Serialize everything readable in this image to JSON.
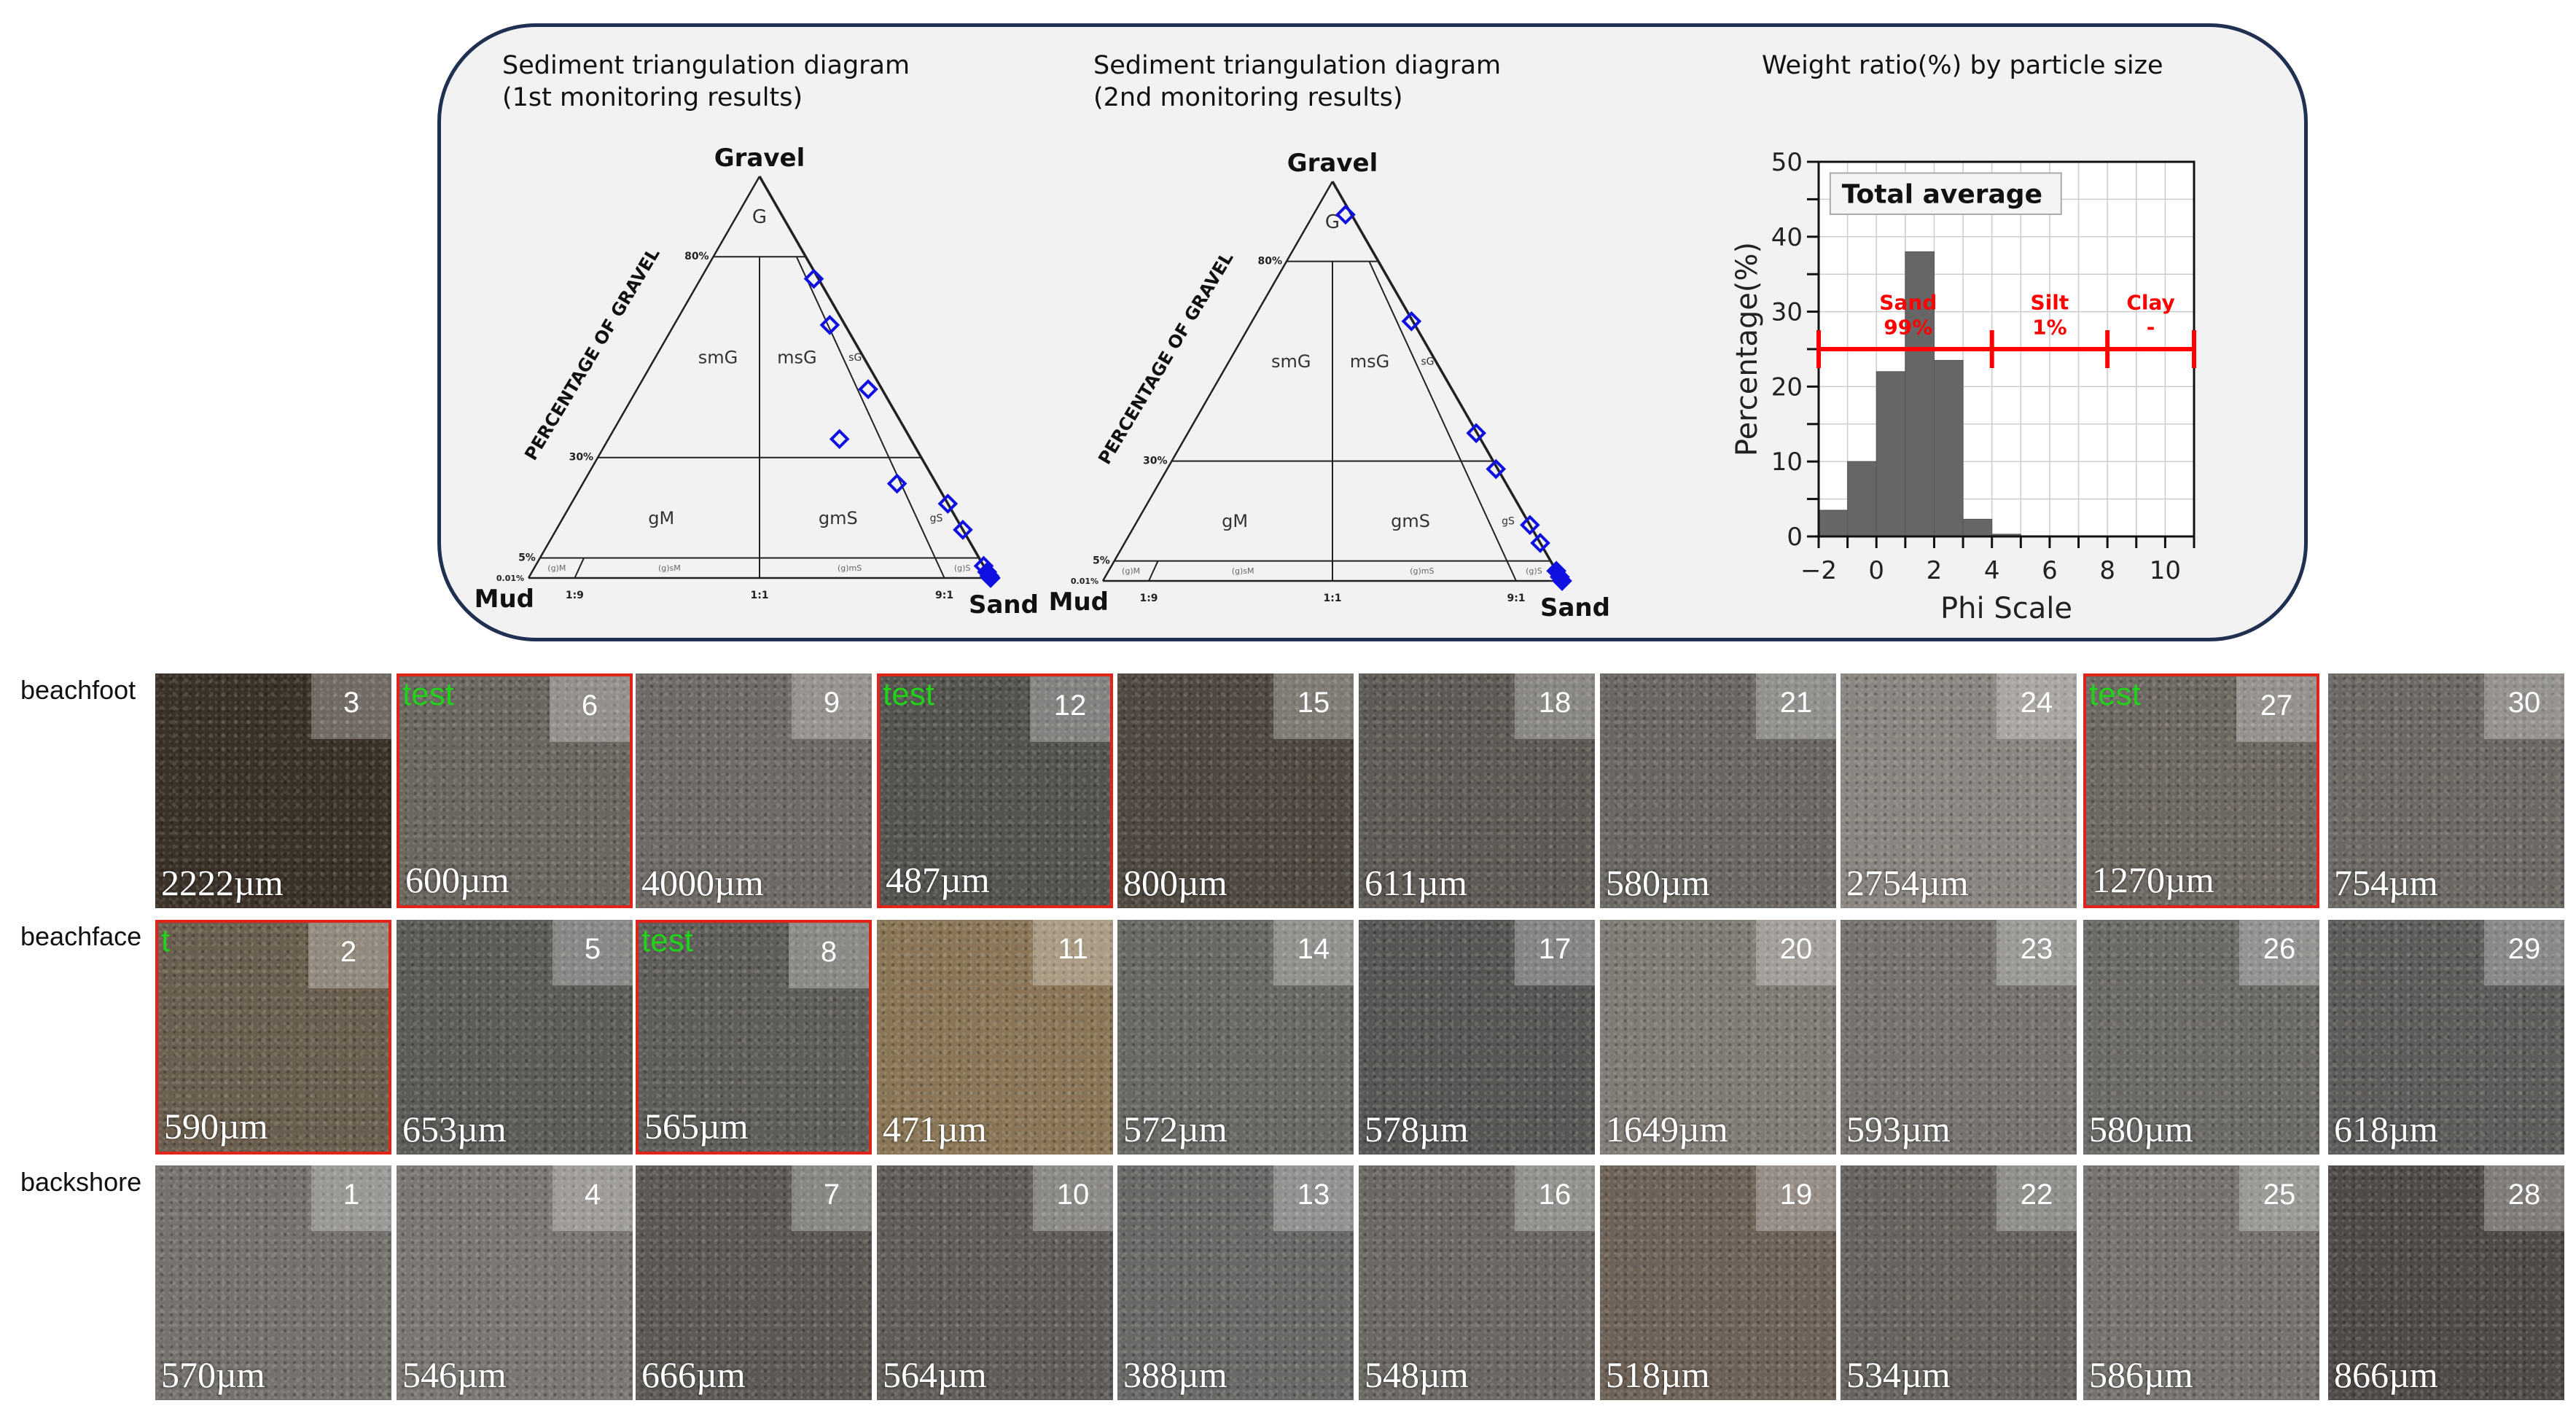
{
  "panel": {
    "tri1_title": [
      "Sediment triangulation diagram",
      "(1st monitoring results)"
    ],
    "tri2_title": [
      "Sediment triangulation diagram",
      "(2nd monitoring results)"
    ],
    "hist_title": "Weight ratio(%) by particle size",
    "border_color": "#1f3050"
  },
  "ternary_labels": {
    "apex": "Gravel",
    "left": "Mud",
    "right": "Sand",
    "axis": "PERCENTAGE OF GRAVEL",
    "levels": [
      "80%",
      "30%",
      "5%",
      "0.01%"
    ],
    "ratios": [
      "1:9",
      "1:1",
      "9:1"
    ],
    "regions": [
      "G",
      "smG",
      "msG",
      "sG",
      "gM",
      "gmS",
      "gS",
      "(g)M",
      "(g)sM",
      "(g)mS",
      "(g)S"
    ]
  },
  "chart_data": [
    {
      "type": "scatter",
      "subtype": "ternary",
      "title": "Sediment triangulation diagram (1st monitoring results)",
      "marker_color": "#1010e0",
      "points": [
        {
          "gravel": 74.5,
          "sand": 24.5,
          "mud": 1
        },
        {
          "gravel": 63,
          "sand": 33.7,
          "mud": 3.3
        },
        {
          "gravel": 47,
          "sand": 50,
          "mud": 3
        },
        {
          "gravel": 34.6,
          "sand": 50,
          "mud": 15.4
        },
        {
          "gravel": 23.5,
          "sand": 68,
          "mud": 8.5
        },
        {
          "gravel": 18.5,
          "sand": 81.5,
          "mud": 0
        },
        {
          "gravel": 12,
          "sand": 88,
          "mud": 0
        },
        {
          "gravel": 3,
          "sand": 97,
          "mud": 0
        },
        {
          "gravel": 1.5,
          "sand": 98.5,
          "mud": 0
        },
        {
          "gravel": 0.5,
          "sand": 99.5,
          "mud": 0
        },
        {
          "gravel": 0,
          "sand": 100,
          "mud": 0
        }
      ]
    },
    {
      "type": "scatter",
      "subtype": "ternary",
      "title": "Sediment triangulation diagram (2nd monitoring results)",
      "marker_color": "#1010e0",
      "points": [
        {
          "gravel": 91.7,
          "sand": 7,
          "mud": 1.3
        },
        {
          "gravel": 65,
          "sand": 34.7,
          "mud": 0.3
        },
        {
          "gravel": 37,
          "sand": 62.8,
          "mud": 0.2
        },
        {
          "gravel": 28,
          "sand": 71.6,
          "mud": 0.4
        },
        {
          "gravel": 14,
          "sand": 86,
          "mud": 0
        },
        {
          "gravel": 9.5,
          "sand": 90.5,
          "mud": 0
        },
        {
          "gravel": 2.5,
          "sand": 97.5,
          "mud": 0
        },
        {
          "gravel": 1,
          "sand": 99,
          "mud": 0
        },
        {
          "gravel": 0,
          "sand": 100,
          "mud": 0
        }
      ]
    },
    {
      "type": "bar",
      "title": "Weight ratio(%) by particle size",
      "legend": "Total average",
      "xlabel": "Phi Scale",
      "ylabel": "Percentage(%)",
      "xlim": [
        -2,
        11
      ],
      "ylim": [
        0,
        50
      ],
      "xticks": [
        "−2",
        "0",
        "2",
        "4",
        "6",
        "8",
        "10"
      ],
      "yticks": [
        "0",
        "10",
        "20",
        "30",
        "40",
        "50"
      ],
      "grid": true,
      "bins": [
        [
          -2,
          -1
        ],
        [
          -1,
          0
        ],
        [
          0,
          1
        ],
        [
          1,
          2
        ],
        [
          2,
          3
        ],
        [
          3,
          4
        ],
        [
          4,
          5
        ],
        [
          5,
          6
        ]
      ],
      "values": [
        3.5,
        10,
        22,
        38,
        23.5,
        2.3,
        0.3,
        0.1
      ],
      "bar_color": "#666666",
      "classes": [
        {
          "name": "Sand",
          "value": "99%",
          "from": -2,
          "to": 4
        },
        {
          "name": "Silt",
          "value": "1%",
          "from": 4,
          "to": 8
        },
        {
          "name": "Clay",
          "value": "-",
          "from": 8,
          "to": 11
        }
      ],
      "class_color": "#ff0000"
    }
  ],
  "rows": [
    {
      "label": "beachfoot",
      "tiles": [
        {
          "n": "3",
          "size": "2222µm",
          "tone": "#3a3128"
        },
        {
          "n": "6",
          "size": "600µm",
          "tone": "#6b6660",
          "flag": true,
          "tag": "test"
        },
        {
          "n": "9",
          "size": "4000µm",
          "tone": "#6e6a66"
        },
        {
          "n": "12",
          "size": "487µm",
          "tone": "#55534f",
          "flag": true,
          "tag": "test"
        },
        {
          "n": "15",
          "size": "800µm",
          "tone": "#4e4840"
        },
        {
          "n": "18",
          "size": "611µm",
          "tone": "#5e5a55"
        },
        {
          "n": "21",
          "size": "580µm",
          "tone": "#6a6763"
        },
        {
          "n": "24",
          "size": "2754µm",
          "tone": "#8a8580"
        },
        {
          "n": "27",
          "size": "1270µm",
          "tone": "#6e6862",
          "flag": true,
          "tag": "test"
        },
        {
          "n": "30",
          "size": "754µm",
          "tone": "#6c6964"
        }
      ]
    },
    {
      "label": "beachface",
      "tiles": [
        {
          "n": "2",
          "size": "590µm",
          "tone": "#6a5e4e",
          "flag": true,
          "tag": "t"
        },
        {
          "n": "5",
          "size": "653µm",
          "tone": "#5d5b58"
        },
        {
          "n": "8",
          "size": "565µm",
          "tone": "#5f5d59",
          "flag": true,
          "tag": "test"
        },
        {
          "n": "11",
          "size": "471µm",
          "tone": "#8a7656"
        },
        {
          "n": "14",
          "size": "572µm",
          "tone": "#6a6865"
        },
        {
          "n": "17",
          "size": "578µm",
          "tone": "#575654"
        },
        {
          "n": "20",
          "size": "1649µm",
          "tone": "#807b75"
        },
        {
          "n": "23",
          "size": "593µm",
          "tone": "#76736f"
        },
        {
          "n": "26",
          "size": "580µm",
          "tone": "#6c6a67"
        },
        {
          "n": "29",
          "size": "618µm",
          "tone": "#5e5c5a"
        }
      ]
    },
    {
      "label": "backshore",
      "tiles": [
        {
          "n": "1",
          "size": "570µm",
          "tone": "#75726e"
        },
        {
          "n": "4",
          "size": "546µm",
          "tone": "#7a7773"
        },
        {
          "n": "7",
          "size": "666µm",
          "tone": "#5c5955"
        },
        {
          "n": "10",
          "size": "564µm",
          "tone": "#605d59"
        },
        {
          "n": "13",
          "size": "388µm",
          "tone": "#6a6866"
        },
        {
          "n": "16",
          "size": "548µm",
          "tone": "#6b6864"
        },
        {
          "n": "19",
          "size": "518µm",
          "tone": "#6e6258"
        },
        {
          "n": "22",
          "size": "534µm",
          "tone": "#67645f"
        },
        {
          "n": "25",
          "size": "586µm",
          "tone": "#76736f"
        },
        {
          "n": "28",
          "size": "866µm",
          "tone": "#4f4a46"
        }
      ]
    }
  ]
}
